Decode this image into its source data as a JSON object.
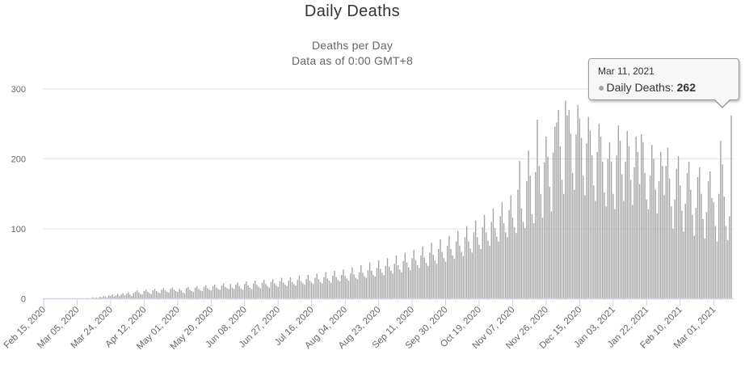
{
  "header": {
    "title": "Daily Deaths",
    "subtitle_line1": "Deaths per Day",
    "subtitle_line2": "Data as of 0:00 GMT+8"
  },
  "tooltip": {
    "date": "Mar 11, 2021",
    "marker_glyph": "●",
    "series_label": "Daily Deaths:",
    "value": "262"
  },
  "colors": {
    "bar": "#a5a5a5",
    "grid": "#e6e6e6",
    "axis_line": "#ccd6eb",
    "title": "#333333",
    "subtitle": "#666666",
    "axis_label": "#666666"
  },
  "y_axis": {
    "ticks": [
      0,
      100,
      200,
      300
    ],
    "max": 300
  },
  "x_axis": {
    "tick_interval_days": 19,
    "labels": [
      "Feb 15, 2020",
      "Mar 05, 2020",
      "Mar 24, 2020",
      "Apr 12, 2020",
      "May 01, 2020",
      "May 20, 2020",
      "Jun 08, 2020",
      "Jun 27, 2020",
      "Jul 16, 2020",
      "Aug 04, 2020",
      "Aug 23, 2020",
      "Sep 11, 2020",
      "Sep 30, 2020",
      "Oct 19, 2020",
      "Nov 07, 2020",
      "Nov 26, 2020",
      "Dec 15, 2020",
      "Jan 03, 2021",
      "Jan 22, 2021",
      "Feb 10, 2021",
      "Mar 01, 2021"
    ]
  },
  "chart_data": {
    "type": "bar",
    "title": "Daily Deaths",
    "subtitle": [
      "Deaths per Day",
      "Data as of 0:00 GMT+8"
    ],
    "series_name": "Daily Deaths",
    "frequency": "daily",
    "start_date": "2020-02-15",
    "end_date": "2021-03-11",
    "xlabel": "",
    "ylabel": "",
    "ylim": [
      0,
      300
    ],
    "grid": true,
    "legend": false,
    "highlighted_point": {
      "date": "Mar 11, 2021",
      "value": 262
    },
    "values": [
      0,
      0,
      0,
      0,
      0,
      0,
      0,
      0,
      0,
      0,
      0,
      0,
      0,
      0,
      0,
      0,
      0,
      0,
      0,
      0,
      0,
      0,
      0,
      0,
      0,
      1,
      0,
      1,
      2,
      1,
      2,
      1,
      3,
      2,
      4,
      3,
      2,
      5,
      4,
      6,
      3,
      5,
      7,
      4,
      6,
      8,
      5,
      7,
      9,
      6,
      4,
      8,
      10,
      12,
      9,
      7,
      6,
      11,
      13,
      10,
      8,
      7,
      12,
      14,
      11,
      9,
      8,
      13,
      15,
      12,
      10,
      9,
      14,
      16,
      13,
      11,
      10,
      14,
      12,
      9,
      8,
      15,
      17,
      13,
      11,
      10,
      16,
      18,
      14,
      12,
      11,
      17,
      19,
      15,
      13,
      12,
      18,
      20,
      16,
      14,
      13,
      19,
      22,
      17,
      15,
      14,
      21,
      16,
      14,
      20,
      23,
      18,
      15,
      13,
      21,
      25,
      19,
      16,
      14,
      22,
      26,
      20,
      17,
      15,
      23,
      27,
      21,
      18,
      16,
      24,
      28,
      22,
      19,
      17,
      25,
      30,
      23,
      20,
      18,
      26,
      31,
      24,
      21,
      19,
      27,
      33,
      25,
      22,
      20,
      28,
      34,
      26,
      23,
      21,
      30,
      36,
      28,
      24,
      22,
      31,
      38,
      29,
      26,
      23,
      33,
      40,
      31,
      27,
      25,
      34,
      42,
      33,
      29,
      26,
      36,
      45,
      35,
      30,
      28,
      38,
      48,
      37,
      32,
      30,
      41,
      52,
      40,
      34,
      32,
      44,
      55,
      43,
      37,
      34,
      47,
      58,
      46,
      40,
      36,
      50,
      62,
      48,
      42,
      38,
      54,
      66,
      52,
      45,
      41,
      58,
      70,
      55,
      48,
      44,
      62,
      75,
      59,
      51,
      47,
      66,
      80,
      63,
      55,
      50,
      71,
      85,
      67,
      58,
      53,
      76,
      90,
      71,
      62,
      57,
      82,
      97,
      76,
      67,
      61,
      88,
      104,
      82,
      72,
      66,
      95,
      112,
      88,
      77,
      71,
      102,
      120,
      95,
      83,
      76,
      110,
      129,
      101,
      89,
      82,
      118,
      138,
      108,
      95,
      88,
      127,
      148,
      116,
      102,
      94,
      156,
      197,
      129,
      110,
      101,
      168,
      212,
      176,
      121,
      108,
      181,
      256,
      190,
      150,
      116,
      195,
      232,
      203,
      160,
      125,
      209,
      246,
      252,
      270,
      218,
      170,
      150,
      283,
      262,
      270,
      236,
      180,
      156,
      235,
      277,
      258,
      230,
      176,
      148,
      222,
      260,
      240,
      205,
      162,
      140,
      210,
      250,
      232,
      196,
      152,
      132,
      200,
      224,
      196,
      150,
      128,
      205,
      248,
      226,
      178,
      140,
      196,
      240,
      218,
      170,
      134,
      188,
      232,
      210,
      164,
      235,
      224,
      180,
      142,
      128,
      176,
      220,
      200,
      156,
      122,
      168,
      210,
      190,
      148,
      190,
      216,
      172,
      132,
      100,
      142,
      186,
      204,
      162,
      126,
      96,
      136,
      180,
      196,
      156,
      120,
      90,
      130,
      174,
      188,
      150,
      114,
      86,
      124,
      168,
      182,
      144,
      138,
      104,
      82,
      150,
      226,
      192,
      146,
      104,
      84,
      118,
      262
    ]
  }
}
